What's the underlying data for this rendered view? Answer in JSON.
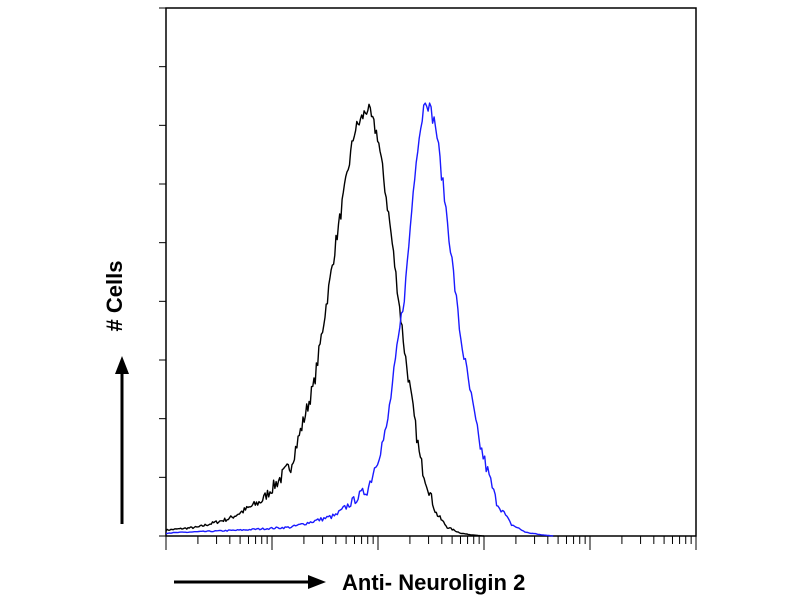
{
  "chart_data": {
    "type": "area",
    "title": "",
    "xlabel": "Anti- Neuroligin 2",
    "ylabel": "# Cells",
    "x_scale": "log",
    "xlim": [
      1,
      100000
    ],
    "ylim": [
      0,
      9
    ],
    "grid": false,
    "legend": "none",
    "series": [
      {
        "color": "#000000",
        "x": [
          1,
          2,
          4,
          8,
          15,
          25,
          40,
          60,
          80,
          100,
          130,
          180,
          250,
          350,
          450,
          600,
          750,
          1000
        ],
        "values": [
          0.1,
          0.15,
          0.3,
          0.6,
          1.2,
          2.6,
          5.0,
          6.9,
          7.3,
          6.8,
          5.3,
          3.1,
          1.3,
          0.4,
          0.15,
          0.05,
          0.02,
          0
        ]
      },
      {
        "color": "#1a1aff",
        "x": [
          1,
          5,
          15,
          40,
          80,
          120,
          180,
          230,
          280,
          350,
          450,
          600,
          900,
          1300,
          1800,
          2500,
          3500,
          4500
        ],
        "values": [
          0.05,
          0.1,
          0.15,
          0.35,
          0.8,
          1.8,
          4.2,
          6.5,
          7.5,
          7.0,
          5.4,
          3.4,
          1.6,
          0.6,
          0.2,
          0.06,
          0.02,
          0
        ]
      }
    ]
  }
}
